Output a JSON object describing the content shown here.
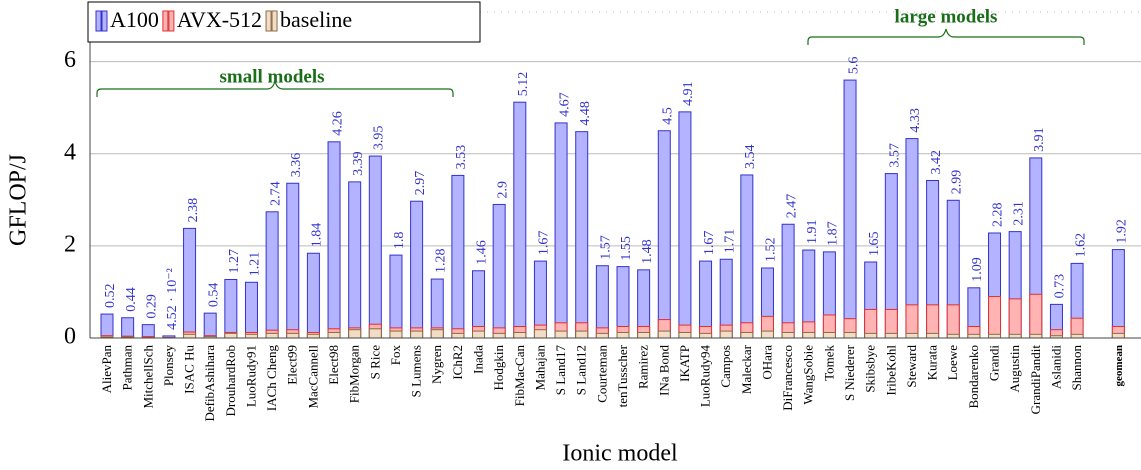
{
  "chart_data": {
    "type": "bar",
    "x_label": "Ionic model",
    "y_label": "GFLOP/J",
    "annotations": [
      "small models",
      "large models"
    ],
    "categories": [
      "AlievPan",
      "Pathman",
      "MitchellSch",
      "Plonsey",
      "ISAC Hu",
      "DefibAshihara",
      "DrouhardRob",
      "LuoRudy91",
      "IACh Cheng",
      "Elect99",
      "MacCannell",
      "Elect98",
      "FibMorgan",
      "S Rice",
      "Fox",
      "S Lumens",
      "Nygren",
      "IChR2",
      "Inada",
      "Hodgkin",
      "FibMacCan",
      "Mahajan",
      "S Land17",
      "S Land12",
      "Courteman",
      "tenTusscher",
      "Ramirez",
      "INa Bond",
      "IKATP",
      "LuoRudy94",
      "Campos",
      "Maleckar",
      "OHara",
      "DiFrancesco",
      "WangSobie",
      "Tomek",
      "S Niederer",
      "Skibsbye",
      "IribeKohl",
      "Steward",
      "Kurata",
      "Loewe",
      "Bondarenko",
      "Grandi",
      "Augustin",
      "GrandiPandit",
      "Aslanidi",
      "Shannon",
      "geomean"
    ],
    "series": [
      {
        "name": "A100",
        "color": "#b3b3ff",
        "stroke": "#3333cc",
        "values": [
          0.52,
          0.44,
          0.29,
          0.0452,
          2.38,
          0.54,
          1.27,
          1.21,
          2.74,
          3.36,
          1.84,
          4.26,
          3.39,
          3.95,
          1.8,
          2.97,
          1.28,
          3.53,
          1.46,
          2.9,
          5.12,
          1.67,
          4.67,
          4.48,
          1.57,
          1.55,
          1.48,
          4.5,
          4.91,
          1.67,
          1.71,
          3.54,
          1.52,
          2.47,
          1.91,
          1.87,
          5.6,
          1.65,
          3.57,
          4.33,
          3.42,
          2.99,
          1.09,
          2.28,
          2.31,
          3.91,
          0.73,
          1.62,
          1.92
        ],
        "value_labels": [
          "0.52",
          "0.44",
          "0.29",
          "4.52 · 10⁻²",
          "2.38",
          "0.54",
          "1.27",
          "1.21",
          "2.74",
          "3.36",
          "1.84",
          "4.26",
          "3.39",
          "3.95",
          "1.8",
          "2.97",
          "1.28",
          "3.53",
          "1.46",
          "2.9",
          "5.12",
          "1.67",
          "4.67",
          "4.48",
          "1.57",
          "1.55",
          "1.48",
          "4.5",
          "4.91",
          "1.67",
          "1.71",
          "3.54",
          "1.52",
          "2.47",
          "1.91",
          "1.87",
          "5.6",
          "1.65",
          "3.57",
          "4.33",
          "3.42",
          "2.99",
          "1.09",
          "2.28",
          "2.31",
          "3.91",
          "0.73",
          "1.62",
          "1.92"
        ]
      },
      {
        "name": "AVX-512",
        "color": "#ffb3b3",
        "stroke": "#e03030",
        "values": [
          0.05,
          0.04,
          0.03,
          0.01,
          0.13,
          0.05,
          0.12,
          0.12,
          0.17,
          0.18,
          0.12,
          0.2,
          0.22,
          0.3,
          0.22,
          0.22,
          0.22,
          0.2,
          0.25,
          0.22,
          0.25,
          0.28,
          0.33,
          0.33,
          0.22,
          0.25,
          0.25,
          0.4,
          0.28,
          0.25,
          0.28,
          0.33,
          0.47,
          0.33,
          0.35,
          0.5,
          0.42,
          0.62,
          0.62,
          0.72,
          0.72,
          0.72,
          0.25,
          0.9,
          0.85,
          0.95,
          0.18,
          0.43,
          0.25
        ]
      },
      {
        "name": "baseline",
        "color": "#f2dcc4",
        "stroke": "#8b6b4a",
        "values": [
          0.02,
          0.02,
          0.01,
          0.005,
          0.08,
          0.03,
          0.1,
          0.08,
          0.1,
          0.1,
          0.08,
          0.12,
          0.18,
          0.2,
          0.15,
          0.15,
          0.18,
          0.1,
          0.15,
          0.1,
          0.12,
          0.18,
          0.15,
          0.15,
          0.1,
          0.12,
          0.12,
          0.15,
          0.12,
          0.1,
          0.15,
          0.12,
          0.15,
          0.12,
          0.12,
          0.12,
          0.12,
          0.1,
          0.1,
          0.1,
          0.1,
          0.08,
          0.08,
          0.08,
          0.08,
          0.08,
          0.05,
          0.08,
          0.1
        ]
      }
    ],
    "ylim": [
      0,
      7.1
    ],
    "yticks": [
      0,
      2,
      4,
      6
    ],
    "grid": true,
    "legend": "top-left"
  }
}
